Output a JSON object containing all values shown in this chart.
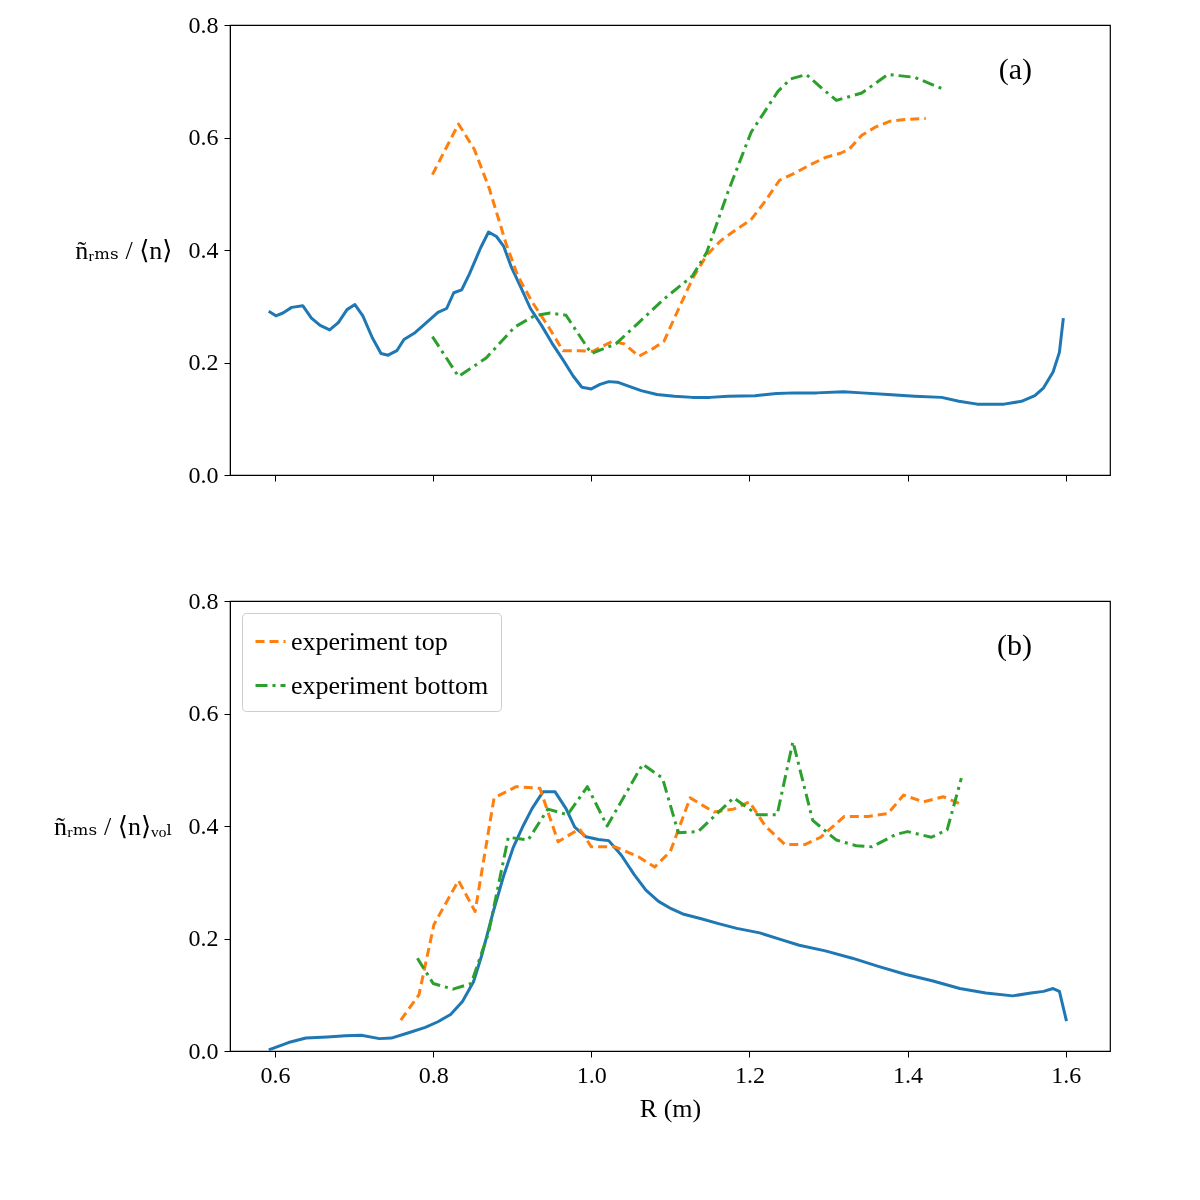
{
  "chart_data": [
    {
      "type": "line",
      "ylabel": "ñᵣₘₛ / ⟨n⟩",
      "annotations": [
        "(a)"
      ],
      "xlim": [
        0.543,
        1.656
      ],
      "ylim": [
        0,
        0.8
      ],
      "xticks": [
        {
          "value": 0.6,
          "label": null
        },
        {
          "value": 0.8,
          "label": null
        },
        {
          "value": 1.0,
          "label": null
        },
        {
          "value": 1.2,
          "label": null
        },
        {
          "value": 1.4,
          "label": null
        },
        {
          "value": 1.6,
          "label": null
        }
      ],
      "yticks": [
        {
          "value": 0,
          "label": "0.0"
        },
        0.2,
        0.4,
        0.6,
        0.8
      ],
      "tick_labels": "y",
      "grid": false,
      "legend": false,
      "series": [
        {
          "color": "#1f77b4",
          "line_style": "solid",
          "x": [
            0.592,
            0.601,
            0.61,
            0.621,
            0.635,
            0.646,
            0.657,
            0.669,
            0.68,
            0.691,
            0.701,
            0.711,
            0.723,
            0.734,
            0.743,
            0.754,
            0.763,
            0.777,
            0.79,
            0.806,
            0.817,
            0.826,
            0.836,
            0.846,
            0.86,
            0.87,
            0.88,
            0.889,
            0.899,
            0.911,
            0.923,
            0.937,
            0.95,
            0.964,
            0.977,
            0.988,
            1.0,
            1.011,
            1.022,
            1.033,
            1.047,
            1.063,
            1.083,
            1.105,
            1.128,
            1.15,
            1.173,
            1.207,
            1.234,
            1.257,
            1.285,
            1.319,
            1.342,
            1.375,
            1.409,
            1.443,
            1.465,
            1.488,
            1.522,
            1.544,
            1.561,
            1.572,
            1.584,
            1.592,
            1.597
          ],
          "values": [
            0.291,
            0.283,
            0.288,
            0.298,
            0.301,
            0.279,
            0.266,
            0.258,
            0.271,
            0.294,
            0.303,
            0.283,
            0.244,
            0.216,
            0.213,
            0.221,
            0.241,
            0.253,
            0.269,
            0.289,
            0.296,
            0.324,
            0.329,
            0.358,
            0.404,
            0.432,
            0.424,
            0.407,
            0.369,
            0.333,
            0.296,
            0.266,
            0.235,
            0.205,
            0.176,
            0.156,
            0.153,
            0.161,
            0.166,
            0.165,
            0.158,
            0.15,
            0.143,
            0.14,
            0.138,
            0.138,
            0.14,
            0.141,
            0.145,
            0.146,
            0.146,
            0.148,
            0.146,
            0.143,
            0.14,
            0.138,
            0.131,
            0.126,
            0.126,
            0.131,
            0.141,
            0.155,
            0.183,
            0.218,
            0.279
          ]
        },
        {
          "color": "#ff7f0e",
          "line_style": "dashed",
          "x": [
            0.799,
            0.832,
            0.852,
            0.871,
            0.892,
            0.907,
            0.925,
            0.946,
            0.964,
            0.984,
            1.002,
            1.027,
            1.042,
            1.06,
            1.076,
            1.092,
            1.108,
            1.128,
            1.146,
            1.164,
            1.184,
            1.202,
            1.22,
            1.238,
            1.258,
            1.276,
            1.297,
            1.315,
            1.326,
            1.342,
            1.36,
            1.378,
            1.396,
            1.423
          ],
          "values": [
            0.534,
            0.624,
            0.579,
            0.509,
            0.412,
            0.354,
            0.308,
            0.263,
            0.221,
            0.221,
            0.22,
            0.238,
            0.233,
            0.211,
            0.223,
            0.238,
            0.288,
            0.349,
            0.391,
            0.417,
            0.437,
            0.454,
            0.487,
            0.524,
            0.537,
            0.551,
            0.565,
            0.572,
            0.579,
            0.604,
            0.619,
            0.629,
            0.632,
            0.634
          ]
        },
        {
          "color": "#2ca02c",
          "line_style": "dashdot",
          "x": [
            0.799,
            0.832,
            0.867,
            0.903,
            0.928,
            0.948,
            0.968,
            1.0,
            1.031,
            1.06,
            1.092,
            1.128,
            1.146,
            1.173,
            1.202,
            1.236,
            1.252,
            1.272,
            1.292,
            1.31,
            1.342,
            1.375,
            1.409,
            1.445
          ],
          "values": [
            0.246,
            0.175,
            0.208,
            0.263,
            0.283,
            0.288,
            0.284,
            0.216,
            0.233,
            0.271,
            0.313,
            0.354,
            0.396,
            0.504,
            0.609,
            0.682,
            0.704,
            0.712,
            0.687,
            0.666,
            0.679,
            0.712,
            0.707,
            0.686
          ]
        }
      ]
    },
    {
      "type": "line",
      "xlabel": "R (m)",
      "ylabel": "ñᵣₘₛ / ⟨n⟩ᵥₒₗ",
      "annotations": [
        "(b)"
      ],
      "xlim": [
        0.543,
        1.656
      ],
      "ylim": [
        0,
        0.8
      ],
      "xticks": [
        0.6,
        0.8,
        {
          "value": 1.0,
          "label": "1.0"
        },
        1.2,
        1.4,
        1.6
      ],
      "yticks": [
        {
          "value": 0,
          "label": "0.0"
        },
        0.2,
        0.4,
        0.6,
        0.8
      ],
      "grid": false,
      "legend": "top left",
      "series": [
        {
          "color": "#1f77b4",
          "line_style": "solid",
          "x": [
            0.592,
            0.617,
            0.639,
            0.666,
            0.689,
            0.709,
            0.732,
            0.747,
            0.768,
            0.79,
            0.806,
            0.822,
            0.837,
            0.851,
            0.862,
            0.876,
            0.889,
            0.901,
            0.914,
            0.925,
            0.939,
            0.954,
            0.968,
            0.979,
            0.993,
            1.009,
            1.022,
            1.038,
            1.054,
            1.069,
            1.085,
            1.101,
            1.117,
            1.139,
            1.162,
            1.184,
            1.213,
            1.24,
            1.263,
            1.296,
            1.33,
            1.364,
            1.398,
            1.431,
            1.466,
            1.499,
            1.533,
            1.556,
            1.572,
            1.584,
            1.592,
            1.601
          ],
          "values": [
            0.002,
            0.015,
            0.023,
            0.025,
            0.027,
            0.028,
            0.022,
            0.023,
            0.032,
            0.042,
            0.052,
            0.065,
            0.088,
            0.123,
            0.173,
            0.248,
            0.311,
            0.361,
            0.401,
            0.431,
            0.461,
            0.461,
            0.431,
            0.398,
            0.381,
            0.376,
            0.374,
            0.348,
            0.314,
            0.286,
            0.266,
            0.253,
            0.243,
            0.235,
            0.226,
            0.218,
            0.21,
            0.198,
            0.188,
            0.178,
            0.165,
            0.15,
            0.136,
            0.125,
            0.111,
            0.103,
            0.098,
            0.103,
            0.106,
            0.111,
            0.106,
            0.053
          ]
        },
        {
          "name": "experiment top",
          "color": "#ff7f0e",
          "line_style": "dashed",
          "x": [
            0.759,
            0.782,
            0.801,
            0.832,
            0.853,
            0.877,
            0.905,
            0.935,
            0.958,
            0.985,
            1.0,
            1.03,
            1.06,
            1.08,
            1.1,
            1.125,
            1.155,
            1.18,
            1.2,
            1.22,
            1.245,
            1.27,
            1.29,
            1.32,
            1.35,
            1.375,
            1.395,
            1.42,
            1.445,
            1.465
          ],
          "values": [
            0.055,
            0.1,
            0.225,
            0.303,
            0.248,
            0.45,
            0.47,
            0.467,
            0.372,
            0.395,
            0.363,
            0.363,
            0.345,
            0.327,
            0.355,
            0.45,
            0.425,
            0.43,
            0.443,
            0.4,
            0.367,
            0.367,
            0.38,
            0.417,
            0.417,
            0.422,
            0.455,
            0.443,
            0.452,
            0.44
          ]
        },
        {
          "name": "experiment bottom",
          "color": "#2ca02c",
          "line_style": "dashdot",
          "x": [
            0.78,
            0.8,
            0.825,
            0.848,
            0.87,
            0.895,
            0.92,
            0.945,
            0.97,
            0.995,
            1.02,
            1.065,
            1.09,
            1.11,
            1.135,
            1.18,
            1.21,
            1.235,
            1.255,
            1.28,
            1.31,
            1.335,
            1.355,
            1.385,
            1.4,
            1.43,
            1.45,
            1.468
          ],
          "values": [
            0.165,
            0.12,
            0.11,
            0.12,
            0.21,
            0.38,
            0.375,
            0.43,
            0.42,
            0.47,
            0.4,
            0.51,
            0.485,
            0.388,
            0.39,
            0.45,
            0.42,
            0.42,
            0.55,
            0.41,
            0.375,
            0.365,
            0.363,
            0.385,
            0.39,
            0.38,
            0.393,
            0.485
          ]
        }
      ]
    }
  ]
}
